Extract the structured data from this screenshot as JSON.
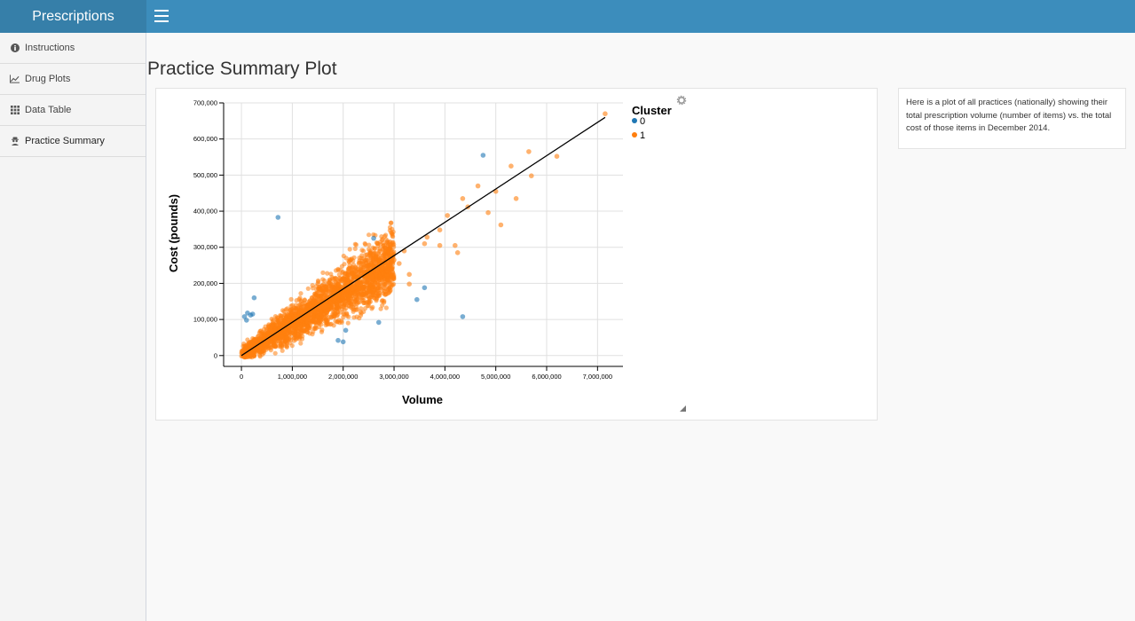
{
  "app": {
    "title": "Prescriptions"
  },
  "sidebar": {
    "items": [
      {
        "label": "Instructions",
        "icon": "info-circle-icon"
      },
      {
        "label": "Drug Plots",
        "icon": "line-chart-icon"
      },
      {
        "label": "Data Table",
        "icon": "grid-icon"
      },
      {
        "label": "Practice Summary",
        "icon": "user-secret-icon",
        "active": true
      }
    ]
  },
  "main": {
    "title": "Practice Summary Plot",
    "info_text": "Here is a plot of all practices (nationally) showing their total prescription volume (number of items) vs. the total cost of those items in December 2014."
  },
  "colors": {
    "cluster0": "#1f77b4",
    "cluster1": "#ff7f0e",
    "header": "#3c8dbc",
    "brand": "#367fa9"
  },
  "chart_data": {
    "type": "scatter",
    "xlabel": "Volume",
    "ylabel": "Cost (pounds)",
    "xlim": [
      -350000,
      7500000
    ],
    "ylim": [
      -30000,
      700000
    ],
    "x_ticks": [
      0,
      1000000,
      2000000,
      3000000,
      4000000,
      5000000,
      6000000,
      7000000
    ],
    "x_tick_labels": [
      "0",
      "1,000,000",
      "2,000,000",
      "3,000,000",
      "4,000,000",
      "5,000,000",
      "6,000,000",
      "7,000,000"
    ],
    "y_ticks": [
      0,
      100000,
      200000,
      300000,
      400000,
      500000,
      600000,
      700000
    ],
    "y_tick_labels": [
      "0",
      "100,000",
      "200,000",
      "300,000",
      "400,000",
      "500,000",
      "600,000",
      "700,000"
    ],
    "grid": true,
    "legend": {
      "title": "Cluster",
      "position": "top-right",
      "entries": [
        "0",
        "1"
      ]
    },
    "series": [
      {
        "name": "0",
        "points": [
          [
            4750000,
            555000
          ],
          [
            720000,
            383000
          ],
          [
            2600000,
            325000
          ],
          [
            250000,
            160000
          ],
          [
            3600000,
            188000
          ],
          [
            3450000,
            155000
          ],
          [
            4350000,
            108000
          ],
          [
            2700000,
            92000
          ],
          [
            2050000,
            70000
          ],
          [
            1900000,
            42000
          ],
          [
            2000000,
            38000
          ],
          [
            60000,
            108000
          ],
          [
            100000,
            98000
          ],
          [
            180000,
            112000
          ],
          [
            120000,
            118000
          ],
          [
            220000,
            115000
          ]
        ]
      },
      {
        "name": "1",
        "points": [
          [
            7150000,
            670000
          ],
          [
            5650000,
            565000
          ],
          [
            6200000,
            552000
          ],
          [
            5300000,
            525000
          ],
          [
            5700000,
            498000
          ],
          [
            4650000,
            470000
          ],
          [
            5000000,
            455000
          ],
          [
            4350000,
            435000
          ],
          [
            5400000,
            435000
          ],
          [
            4450000,
            412000
          ],
          [
            4850000,
            396000
          ],
          [
            4050000,
            388000
          ],
          [
            5100000,
            362000
          ],
          [
            3900000,
            348000
          ],
          [
            3650000,
            328000
          ],
          [
            4200000,
            305000
          ],
          [
            3900000,
            305000
          ],
          [
            4250000,
            285000
          ],
          [
            3600000,
            310000
          ],
          [
            3200000,
            290000
          ],
          [
            3000000,
            265000
          ],
          [
            3300000,
            225000
          ],
          [
            3100000,
            255000
          ],
          [
            2900000,
            250000
          ],
          [
            2800000,
            215000
          ],
          [
            3300000,
            198000
          ],
          [
            2600000,
            232000
          ]
        ]
      }
    ],
    "cloud": {
      "series": "1",
      "x_range": [
        0,
        3000000
      ],
      "cost_per_item": 0.088
    },
    "trend_line": {
      "x": [
        0,
        7150000
      ],
      "y": [
        0,
        660000
      ]
    }
  }
}
